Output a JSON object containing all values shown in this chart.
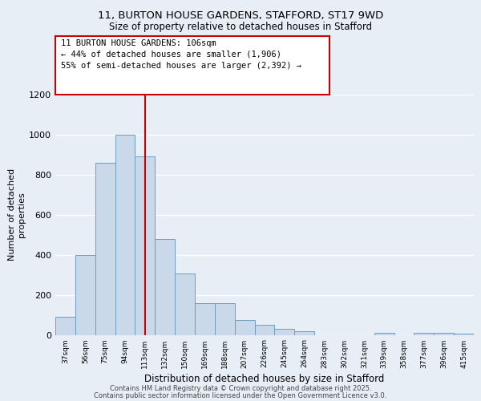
{
  "title_line1": "11, BURTON HOUSE GARDENS, STAFFORD, ST17 9WD",
  "title_line2": "Size of property relative to detached houses in Stafford",
  "xlabel": "Distribution of detached houses by size in Stafford",
  "ylabel": "Number of detached\nproperties",
  "bar_labels": [
    "37sqm",
    "56sqm",
    "75sqm",
    "94sqm",
    "113sqm",
    "132sqm",
    "150sqm",
    "169sqm",
    "188sqm",
    "207sqm",
    "226sqm",
    "245sqm",
    "264sqm",
    "283sqm",
    "302sqm",
    "321sqm",
    "339sqm",
    "358sqm",
    "377sqm",
    "396sqm",
    "415sqm"
  ],
  "bar_heights": [
    90,
    400,
    860,
    1000,
    890,
    480,
    305,
    160,
    160,
    75,
    50,
    30,
    20,
    0,
    0,
    0,
    10,
    0,
    10,
    10,
    5
  ],
  "bar_color": "#c9d9ea",
  "bar_edgecolor": "#6e9dc0",
  "vline_x": 4.0,
  "vline_color": "#cc0000",
  "annotation_text": "11 BURTON HOUSE GARDENS: 106sqm\n← 44% of detached houses are smaller (1,906)\n55% of semi-detached houses are larger (2,392) →",
  "annotation_box_color": "#ffffff",
  "annotation_box_edgecolor": "#cc0000",
  "ylim": [
    0,
    1200
  ],
  "yticks": [
    0,
    200,
    400,
    600,
    800,
    1000,
    1200
  ],
  "background_color": "#e8eef5",
  "plot_background": "#e8eef5",
  "grid_color": "#ffffff",
  "footer_line1": "Contains HM Land Registry data © Crown copyright and database right 2025.",
  "footer_line2": "Contains public sector information licensed under the Open Government Licence v3.0."
}
